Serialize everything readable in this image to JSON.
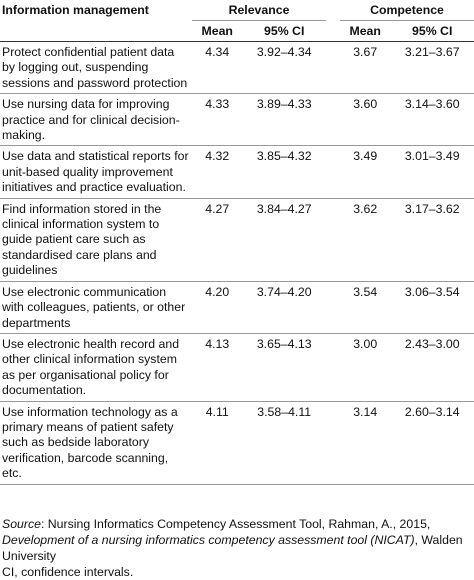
{
  "header": {
    "category": "Information management",
    "groups": [
      "Relevance",
      "Competence"
    ],
    "columns": [
      "Mean",
      "95% CI",
      "Mean",
      "95% CI"
    ]
  },
  "table": {
    "rows": [
      [
        "Protect confidential patient data by logging out, suspending sessions and password protection",
        "4.34",
        "3.92–4.34",
        "3.67",
        "3.21–3.67"
      ],
      [
        "Use nursing data for improving practice and for clinical decision-making.",
        "4.33",
        "3.89–4.33",
        "3.60",
        "3.14–3.60"
      ],
      [
        "Use data and statistical reports for unit-based quality improvement initiatives and practice evaluation.",
        "4.32",
        "3.85–4.32",
        "3.49",
        "3.01–3.49"
      ],
      [
        "Find information stored in the clinical information system to guide patient care such as standardised care plans and guidelines",
        "4.27",
        "3.84–4.27",
        "3.62",
        "3.17–3.62"
      ],
      [
        "Use electronic communication with colleagues, patients, or other departments",
        "4.20",
        "3.74–4.20",
        "3.54",
        "3.06–3.54"
      ],
      [
        "Use electronic health record and other clinical information system as per organisational policy for documentation.",
        "4.13",
        "3.65–4.13",
        "3.00",
        "2.43–3.00"
      ],
      [
        "Use information technology as a primary means of patient safety such as bedside laboratory verification, barcode scanning, etc.",
        "4.11",
        "3.58–4.11",
        "3.14",
        "2.60–3.14"
      ]
    ]
  },
  "footer": {
    "source_label": "Source",
    "source_text": ": Nursing Informatics Competency Assessment Tool, Rahman, A., 2015, ",
    "source_title": "Development of a nursing informatics competency assessment tool (NICAT)",
    "source_end": ", Walden University",
    "note": "CI, confidence intervals."
  }
}
